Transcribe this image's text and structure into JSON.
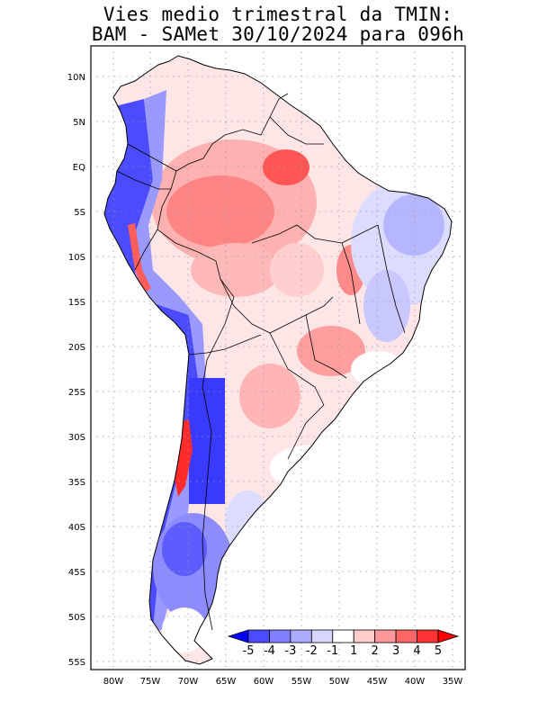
{
  "title_line1": "Vies medio trimestral da TMIN:",
  "title_line2": "BAM - SAMet 30/10/2024  para 096h",
  "map": {
    "lon_ticks": [
      "80W",
      "75W",
      "70W",
      "65W",
      "60W",
      "55W",
      "50W",
      "45W",
      "40W",
      "35W"
    ],
    "lat_ticks": [
      "10N",
      "5N",
      "EQ",
      "5S",
      "10S",
      "15S",
      "20S",
      "25S",
      "30S",
      "35S",
      "40S",
      "45S",
      "50S",
      "55S"
    ],
    "grid": true,
    "lon_range": [
      -83,
      -34
    ],
    "lat_range": [
      -56,
      13
    ]
  },
  "colorbar": {
    "labels": [
      "-5",
      "-4",
      "-3",
      "-2",
      "-1",
      "1",
      "2",
      "3",
      "4",
      "5"
    ],
    "colors": [
      "#0000ff",
      "#4b4bff",
      "#7f7fff",
      "#ababff",
      "#d8d8ff",
      "#ffffff",
      "#ffcccc",
      "#ff9999",
      "#ff6666",
      "#ff3333",
      "#ff0000"
    ]
  },
  "palette": {
    "strong_blue": "#2233ee",
    "mid_blue": "#7f7fff",
    "light_blue": "#c8ccff",
    "light_red": "#ffc8c8",
    "mid_red": "#ff8a8a",
    "strong_red": "#ff3030"
  }
}
